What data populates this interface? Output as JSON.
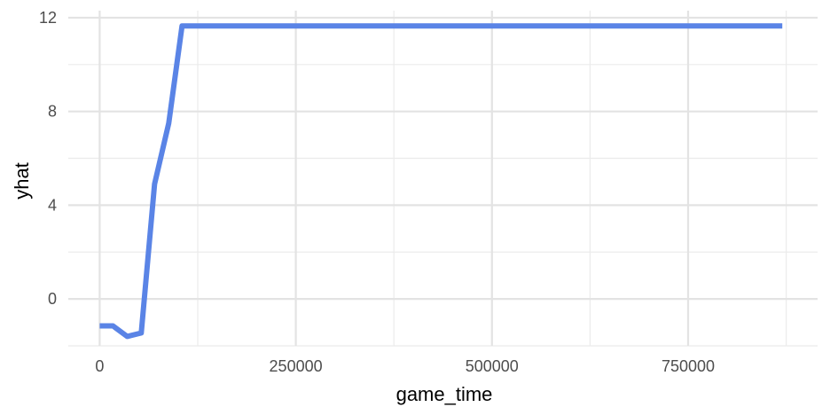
{
  "chart_data": {
    "type": "line",
    "xlabel": "game_time",
    "ylabel": "yhat",
    "xlim": [
      -40000,
      915000
    ],
    "ylim": [
      -2,
      12.3
    ],
    "x_ticks": [
      0,
      250000,
      500000,
      750000
    ],
    "x_tick_labels": [
      "0",
      "250000",
      "500000",
      "750000"
    ],
    "x_minor_ticks": [
      125000,
      375000,
      625000,
      875000
    ],
    "y_ticks": [
      0,
      4,
      8,
      12
    ],
    "y_tick_labels": [
      "0",
      "4",
      "8",
      "12"
    ],
    "y_minor_ticks": [
      -2,
      2,
      6,
      10
    ],
    "grid": true,
    "series": [
      {
        "color": "#5a84e6",
        "x": [
          0,
          17000,
          35000,
          53000,
          70000,
          88000,
          105000,
          870000
        ],
        "y": [
          -1.15,
          -1.15,
          -1.6,
          -1.45,
          4.9,
          7.5,
          11.65,
          11.65
        ]
      }
    ]
  }
}
